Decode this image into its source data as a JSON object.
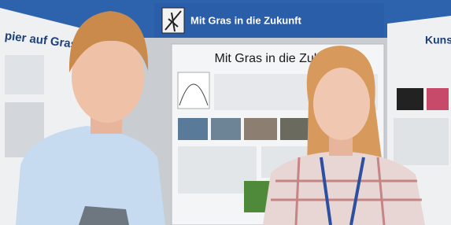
{
  "banner": {
    "title": "Mit Gras in die Zukunft"
  },
  "posters": [
    {
      "title": "pier auf Grasb"
    },
    {
      "title": "Mit Gras in die Zukunft"
    },
    {
      "title": "Kuns"
    }
  ]
}
